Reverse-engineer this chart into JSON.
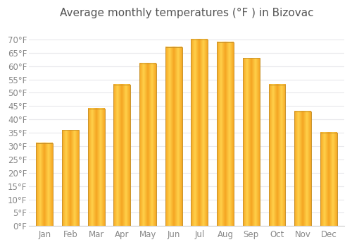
{
  "title": "Average monthly temperatures (°F ) in Bizovac",
  "months": [
    "Jan",
    "Feb",
    "Mar",
    "Apr",
    "May",
    "Jun",
    "Jul",
    "Aug",
    "Sep",
    "Oct",
    "Nov",
    "Dec"
  ],
  "values": [
    31,
    36,
    44,
    53,
    61,
    67,
    70,
    69,
    63,
    53,
    43,
    35
  ],
  "bar_color_center": "#FFD04A",
  "bar_color_edge": "#F5A623",
  "bar_border_color": "#C8922A",
  "background_color": "#FFFFFF",
  "grid_color": "#E8E8EC",
  "text_color": "#888888",
  "title_color": "#555555",
  "ylim": [
    0,
    75
  ],
  "yticks": [
    0,
    5,
    10,
    15,
    20,
    25,
    30,
    35,
    40,
    45,
    50,
    55,
    60,
    65,
    70
  ],
  "title_fontsize": 11,
  "tick_fontsize": 8.5,
  "bar_width": 0.65
}
